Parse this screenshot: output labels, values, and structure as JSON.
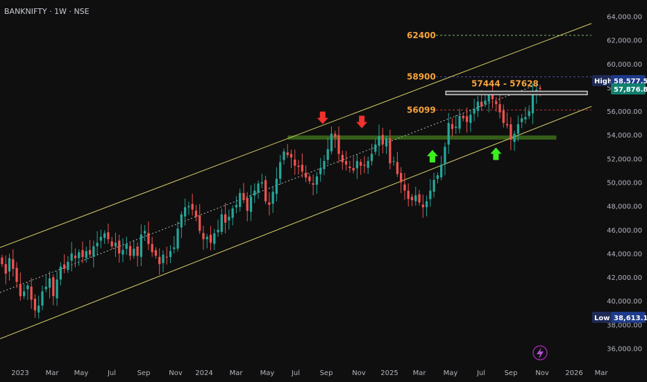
{
  "header": {
    "symbol": "BANKNIFTY",
    "interval": "1W",
    "exchange": "NSE"
  },
  "colors": {
    "background": "#0f0f0f",
    "bullish": "#26a69a",
    "bearish": "#ef5350",
    "channel": "#d8cf6b",
    "level_label": "#f7a33c",
    "support_zone": "#3d6b1a",
    "arrow_down": "#f0312d",
    "arrow_up": "#3cf01e",
    "high_tag": "#1e3a8a",
    "last_price_tag": "#11806e"
  },
  "chart_data": {
    "type": "candlestick",
    "title": "BANKNIFTY · 1W · NSE",
    "y_axis": {
      "ticks": [
        "64,000.00",
        "62,000.00",
        "60,000.00",
        "58,000.00",
        "56,000.00",
        "54,000.00",
        "52,000.00",
        "50,000.00",
        "48,000.00",
        "46,000.00",
        "44,000.00",
        "42,000.00",
        "40,000.00",
        "38,000.00",
        "36,000.00"
      ],
      "ylim": [
        35500,
        64500
      ]
    },
    "x_axis": {
      "ticks": [
        "2023",
        "Mar",
        "May",
        "Jul",
        "Sep",
        "Nov",
        "2024",
        "Mar",
        "May",
        "Jul",
        "Sep",
        "Nov",
        "2025",
        "Mar",
        "May",
        "Jul",
        "Sep",
        "Nov",
        "2026",
        "Mar"
      ],
      "start": "2023-01-01",
      "end": "2026-03-10"
    },
    "closes": [
      43100,
      42300,
      43600,
      42700,
      41600,
      40400,
      40800,
      41300,
      40100,
      39200,
      39600,
      40800,
      41200,
      41900,
      40400,
      41800,
      42900,
      42700,
      43300,
      44000,
      43600,
      44100,
      43700,
      44200,
      43900,
      44600,
      44900,
      45400,
      45700,
      45200,
      44600,
      44900,
      44000,
      44300,
      44800,
      43800,
      44400,
      43800,
      45600,
      45900,
      44800,
      44100,
      43800,
      43100,
      43900,
      43700,
      44200,
      44500,
      46100,
      47300,
      47900,
      48000,
      47700,
      47100,
      45900,
      45200,
      45400,
      44900,
      45700,
      46000,
      47300,
      46600,
      47100,
      47800,
      48100,
      49100,
      48500,
      47600,
      48800,
      49300,
      49900,
      50000,
      48400,
      48100,
      49200,
      50300,
      51700,
      52600,
      52300,
      52100,
      51400,
      51300,
      50900,
      50400,
      50100,
      49800,
      50500,
      51200,
      51800,
      52800,
      54100,
      53800,
      52400,
      51700,
      51500,
      51200,
      51000,
      51800,
      51400,
      51400,
      51800,
      52400,
      53200,
      53900,
      53200,
      53700,
      51600,
      51800,
      50700,
      50000,
      49300,
      48600,
      48500,
      48900,
      48300,
      47900,
      48400,
      49300,
      50200,
      50600,
      51500,
      53000,
      55000,
      54500,
      54700,
      55600,
      55400,
      55100,
      55700,
      56200,
      56800,
      56400,
      56900,
      57400,
      57000,
      56600,
      55900,
      55000,
      54800,
      53600,
      54100,
      54900,
      55400,
      55500,
      56000,
      57400,
      57800,
      57876.8
    ],
    "y_min_label": "38,613.15",
    "y_max_label": "58,577.50",
    "last_price": "57,876.80",
    "high_tag_label": "High",
    "low_tag_label": "Low",
    "levels": [
      {
        "price": 62400,
        "label": "62400",
        "color": "#7bbf6a",
        "style": "dashed"
      },
      {
        "price": 58900,
        "label": "58900",
        "color": "#4a55a8",
        "style": "dashed"
      },
      {
        "price": 56099,
        "label": "56099",
        "color": "#c0393a",
        "style": "dashed"
      }
    ],
    "range_box": {
      "label": "57444 - 57628",
      "low": 57444,
      "high": 57628,
      "start": "2025-06-10"
    },
    "support_zone": {
      "low": 53600,
      "high": 53950,
      "start": "2024-07-20",
      "end": "2025-12-31"
    },
    "channel": {
      "upper": [
        {
          "date": "2023-01-01",
          "price": 44500
        },
        {
          "date": "2026-03-10",
          "price": 63400
        }
      ],
      "lower": [
        {
          "date": "2023-01-01",
          "price": 36800
        },
        {
          "date": "2026-03-10",
          "price": 56400
        }
      ],
      "mid": [
        {
          "date": "2023-01-01",
          "price": 40700
        },
        {
          "date": "2025-11-20",
          "price": 58200
        }
      ]
    },
    "arrows": [
      {
        "direction": "down",
        "date": "2024-09-27",
        "price": 55150
      },
      {
        "direction": "down",
        "date": "2024-12-13",
        "price": 54800
      },
      {
        "direction": "up",
        "date": "2025-05-01",
        "price": 52500
      },
      {
        "direction": "up",
        "date": "2025-09-03",
        "price": 52700
      }
    ]
  },
  "bottom_icon": "lightning-icon"
}
